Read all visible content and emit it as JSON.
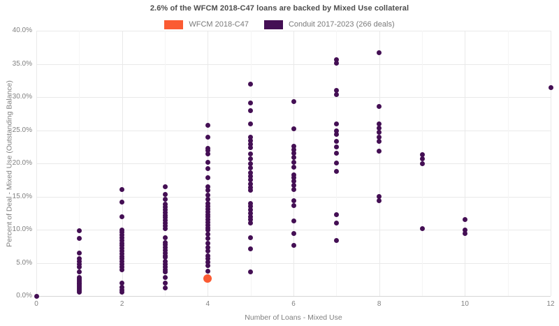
{
  "header": {
    "title": "2.6% of the WFCM 2018-C47 loans are backed by Mixed Use collateral"
  },
  "legend": {
    "items": [
      {
        "label": "WFCM 2018-C47",
        "color": "#fb5b33"
      },
      {
        "label": "Conduit 2017-2023 (266 deals)",
        "color": "#440f54"
      }
    ]
  },
  "colors": {
    "highlight_orange": "#fb5b33",
    "conduit_purple": "#440f54",
    "grid_major": "#e9e9e9",
    "grid_minor": "#f5f5f5",
    "axis_line": "#d6d6d6",
    "tick_text": "#808080",
    "title_text": "#4d4d4d"
  },
  "chart_data": {
    "type": "scatter",
    "title": "2.6% of the WFCM 2018-C47 loans are backed by Mixed Use collateral",
    "xlabel": "Number of Loans - Mixed Use",
    "ylabel": "Percent of Deal - Mixed Use (Outstanding Balance)",
    "xlim": [
      0,
      12
    ],
    "ylim": [
      0,
      40
    ],
    "x_ticks": [
      0,
      2,
      4,
      6,
      8,
      10,
      12
    ],
    "x_minor_ticks": [
      1,
      3,
      5,
      7,
      9,
      11
    ],
    "y_ticks": [
      0,
      5,
      10,
      15,
      20,
      25,
      30,
      35,
      40
    ],
    "y_tick_suffix": "%",
    "grid": true,
    "legend_position": "top",
    "series": [
      {
        "name": "Conduit 2017-2023 (266 deals)",
        "color": "#440f54",
        "marker_size": 7,
        "points": [
          [
            0,
            0.0
          ],
          [
            1,
            9.8
          ],
          [
            1,
            8.7
          ],
          [
            1,
            6.5
          ],
          [
            1,
            5.6
          ],
          [
            1,
            5.2
          ],
          [
            1,
            4.8
          ],
          [
            1,
            4.4
          ],
          [
            1,
            3.6
          ],
          [
            1,
            2.8
          ],
          [
            1,
            2.6
          ],
          [
            1,
            2.4
          ],
          [
            1,
            2.2
          ],
          [
            1,
            2.0
          ],
          [
            1,
            1.8
          ],
          [
            1,
            1.6
          ],
          [
            1,
            1.4
          ],
          [
            1,
            1.2
          ],
          [
            1,
            1.0
          ],
          [
            1,
            0.8
          ],
          [
            1,
            0.6
          ],
          [
            2,
            16.1
          ],
          [
            2,
            14.2
          ],
          [
            2,
            12.0
          ],
          [
            2,
            9.9
          ],
          [
            2,
            9.6
          ],
          [
            2,
            9.2
          ],
          [
            2,
            8.8
          ],
          [
            2,
            8.4
          ],
          [
            2,
            8.0
          ],
          [
            2,
            7.6
          ],
          [
            2,
            7.2
          ],
          [
            2,
            6.8
          ],
          [
            2,
            6.4
          ],
          [
            2,
            6.0
          ],
          [
            2,
            5.6
          ],
          [
            2,
            5.2
          ],
          [
            2,
            4.8
          ],
          [
            2,
            4.4
          ],
          [
            2,
            4.0
          ],
          [
            2,
            2.0
          ],
          [
            2,
            1.3
          ],
          [
            2,
            0.9
          ],
          [
            2,
            0.6
          ],
          [
            3,
            16.5
          ],
          [
            3,
            15.3
          ],
          [
            3,
            14.6
          ],
          [
            3,
            13.8
          ],
          [
            3,
            13.4
          ],
          [
            3,
            13.0
          ],
          [
            3,
            12.6
          ],
          [
            3,
            12.2
          ],
          [
            3,
            11.8
          ],
          [
            3,
            11.4
          ],
          [
            3,
            11.0
          ],
          [
            3,
            10.6
          ],
          [
            3,
            10.2
          ],
          [
            3,
            8.8
          ],
          [
            3,
            8.1
          ],
          [
            3,
            7.7
          ],
          [
            3,
            7.3
          ],
          [
            3,
            6.9
          ],
          [
            3,
            6.5
          ],
          [
            3,
            6.1
          ],
          [
            3,
            5.8
          ],
          [
            3,
            5.2
          ],
          [
            3,
            4.8
          ],
          [
            3,
            4.4
          ],
          [
            3,
            4.0
          ],
          [
            3,
            3.6
          ],
          [
            3,
            2.8
          ],
          [
            3,
            2.0
          ],
          [
            3,
            1.2
          ],
          [
            4,
            25.7
          ],
          [
            4,
            24.0
          ],
          [
            4,
            22.3
          ],
          [
            4,
            21.9
          ],
          [
            4,
            21.4
          ],
          [
            4,
            20.2
          ],
          [
            4,
            19.2
          ],
          [
            4,
            17.8
          ],
          [
            4,
            16.5
          ],
          [
            4,
            15.9
          ],
          [
            4,
            15.2
          ],
          [
            4,
            14.6
          ],
          [
            4,
            13.9
          ],
          [
            4,
            13.5
          ],
          [
            4,
            13.1
          ],
          [
            4,
            12.7
          ],
          [
            4,
            12.3
          ],
          [
            4,
            11.9
          ],
          [
            4,
            11.5
          ],
          [
            4,
            11.1
          ],
          [
            4,
            10.7
          ],
          [
            4,
            10.3
          ],
          [
            4,
            9.9
          ],
          [
            4,
            9.3
          ],
          [
            4,
            8.7
          ],
          [
            4,
            7.9
          ],
          [
            4,
            7.3
          ],
          [
            4,
            6.8
          ],
          [
            4,
            6.1
          ],
          [
            4,
            5.6
          ],
          [
            4,
            5.1
          ],
          [
            4,
            4.6
          ],
          [
            4,
            3.7
          ],
          [
            4,
            2.9
          ],
          [
            5,
            32.0
          ],
          [
            5,
            29.1
          ],
          [
            5,
            28.0
          ],
          [
            5,
            25.9
          ],
          [
            5,
            23.9
          ],
          [
            5,
            23.4
          ],
          [
            5,
            22.9
          ],
          [
            5,
            22.4
          ],
          [
            5,
            21.4
          ],
          [
            5,
            20.7
          ],
          [
            5,
            19.9
          ],
          [
            5,
            19.3
          ],
          [
            5,
            18.6
          ],
          [
            5,
            18.1
          ],
          [
            5,
            17.5
          ],
          [
            5,
            16.9
          ],
          [
            5,
            16.4
          ],
          [
            5,
            15.9
          ],
          [
            5,
            13.9
          ],
          [
            5,
            13.5
          ],
          [
            5,
            13.0
          ],
          [
            5,
            12.5
          ],
          [
            5,
            12.0
          ],
          [
            5,
            11.5
          ],
          [
            5,
            11.0
          ],
          [
            5,
            8.8
          ],
          [
            5,
            7.1
          ],
          [
            5,
            3.6
          ],
          [
            6,
            29.3
          ],
          [
            6,
            25.2
          ],
          [
            6,
            22.6
          ],
          [
            6,
            22.1
          ],
          [
            6,
            21.5
          ],
          [
            6,
            20.9
          ],
          [
            6,
            20.2
          ],
          [
            6,
            19.4
          ],
          [
            6,
            18.3
          ],
          [
            6,
            17.8
          ],
          [
            6,
            17.3
          ],
          [
            6,
            16.7
          ],
          [
            6,
            16.1
          ],
          [
            6,
            14.4
          ],
          [
            6,
            13.6
          ],
          [
            6,
            11.3
          ],
          [
            6,
            9.4
          ],
          [
            6,
            7.6
          ],
          [
            7,
            35.6
          ],
          [
            7,
            35.1
          ],
          [
            7,
            31.0
          ],
          [
            7,
            30.4
          ],
          [
            7,
            26.0
          ],
          [
            7,
            24.9
          ],
          [
            7,
            24.4
          ],
          [
            7,
            23.3
          ],
          [
            7,
            22.5
          ],
          [
            7,
            21.5
          ],
          [
            7,
            20.1
          ],
          [
            7,
            18.8
          ],
          [
            7,
            12.3
          ],
          [
            7,
            11.0
          ],
          [
            7,
            8.4
          ],
          [
            8,
            36.7
          ],
          [
            8,
            28.6
          ],
          [
            8,
            25.9
          ],
          [
            8,
            25.3
          ],
          [
            8,
            24.7
          ],
          [
            8,
            24.0
          ],
          [
            8,
            23.3
          ],
          [
            8,
            21.8
          ],
          [
            8,
            15.0
          ],
          [
            8,
            14.4
          ],
          [
            9,
            21.3
          ],
          [
            9,
            20.7
          ],
          [
            9,
            20.0
          ],
          [
            9,
            10.2
          ],
          [
            10,
            11.5
          ],
          [
            10,
            10.0
          ],
          [
            10,
            9.4
          ],
          [
            12,
            31.4
          ]
        ]
      },
      {
        "name": "WFCM 2018-C47",
        "color": "#fb5b33",
        "marker_size": 12,
        "points": [
          [
            4,
            2.6
          ]
        ]
      }
    ]
  }
}
